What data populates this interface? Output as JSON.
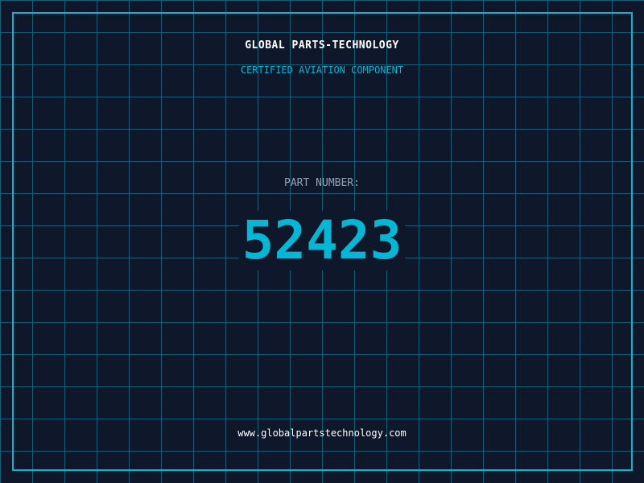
{
  "colors": {
    "background": "#0f172a",
    "grid": "#155e75",
    "accent": "#06b6d4",
    "label": "#94a3b8",
    "text": "#ffffff"
  },
  "header": {
    "title": "GLOBAL PARTS-TECHNOLOGY",
    "subtitle": "CERTIFIED AVIATION COMPONENT"
  },
  "part": {
    "label": "PART NUMBER:",
    "number": "52423"
  },
  "footer": {
    "url": "www.globalpartstechnology.com"
  }
}
